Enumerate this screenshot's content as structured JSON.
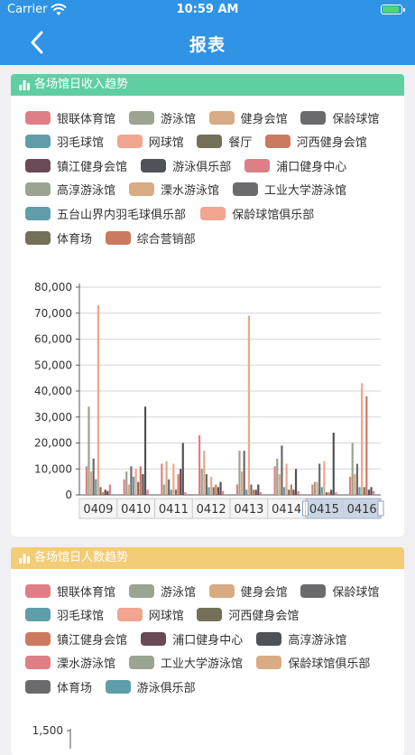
{
  "status": {
    "carrier": "Carrier",
    "time": "10:59 AM",
    "battery_level": 0.9
  },
  "nav": {
    "title": "报表",
    "back_icon": "chevron-left-icon"
  },
  "colors": {
    "navbar": "#2f93e6",
    "card1_header": "#5fcfa2",
    "card2_header": "#f3cc78"
  },
  "card1": {
    "title": "各场馆日收入趋势",
    "icon": "bar-chart-icon",
    "legend": [
      {
        "label": "银联体育馆",
        "color": "#de7f85"
      },
      {
        "label": "游泳馆",
        "color": "#9aa490"
      },
      {
        "label": "健身会馆",
        "color": "#d9ab82"
      },
      {
        "label": "保龄球馆",
        "color": "#6b6b6e"
      },
      {
        "label": "羽毛球馆",
        "color": "#5f9ea8"
      },
      {
        "label": "网球馆",
        "color": "#f1a48e"
      },
      {
        "label": "餐厅",
        "color": "#737058"
      },
      {
        "label": "河西健身会馆",
        "color": "#cc7a5f"
      },
      {
        "label": "镇江健身会馆",
        "color": "#6b4a57"
      },
      {
        "label": "游泳俱乐部",
        "color": "#4f5257"
      },
      {
        "label": "浦口健身中心",
        "color": "#de7f85"
      },
      {
        "label": "高淳游泳馆",
        "color": "#9aa490"
      },
      {
        "label": "溧水游泳馆",
        "color": "#d9ab82"
      },
      {
        "label": "工业大学游泳馆",
        "color": "#6b6b6e"
      },
      {
        "label": "五台山界内羽毛球俱乐部",
        "color": "#5f9ea8"
      },
      {
        "label": "保龄球馆俱乐部",
        "color": "#f1a48e"
      },
      {
        "label": "体育场",
        "color": "#737058"
      },
      {
        "label": "综合营销部",
        "color": "#cc7a5f"
      }
    ]
  },
  "chart_data": [
    {
      "type": "bar",
      "title": "各场馆日收入趋势",
      "categories": [
        "0409",
        "0410",
        "0411",
        "0412",
        "0413",
        "0414",
        "0415",
        "0416"
      ],
      "ylim": [
        0,
        80000
      ],
      "yticks": [
        "0",
        "10,000",
        "20,000",
        "30,000",
        "40,000",
        "50,000",
        "60,000",
        "70,000",
        "80,000"
      ],
      "grid": true,
      "legend_position": "top",
      "zoom_selected": [
        "0415",
        "0416"
      ],
      "series": [
        {
          "name": "银联体育馆",
          "color": "#de7f85",
          "values": [
            11000,
            6000,
            12000,
            23000,
            4000,
            11000,
            4000,
            7000
          ]
        },
        {
          "name": "游泳馆",
          "color": "#9aa490",
          "values": [
            34000,
            9000,
            4000,
            10000,
            17000,
            14000,
            5000,
            20000
          ]
        },
        {
          "name": "健身会馆",
          "color": "#d9ab82",
          "values": [
            9000,
            4000,
            13000,
            17000,
            9000,
            8000,
            5000,
            8000
          ]
        },
        {
          "name": "保龄球馆",
          "color": "#6b6b6e",
          "values": [
            14000,
            11000,
            6000,
            8000,
            17000,
            19000,
            12000,
            12000
          ]
        },
        {
          "name": "羽毛球馆",
          "color": "#5f9ea8",
          "values": [
            6000,
            7000,
            2000,
            3000,
            2000,
            3000,
            3000,
            3000
          ]
        },
        {
          "name": "网球馆",
          "color": "#f1a48e",
          "values": [
            73000,
            10000,
            12000,
            7000,
            69000,
            12000,
            13000,
            43000
          ]
        },
        {
          "name": "餐厅",
          "color": "#737058",
          "values": [
            3000,
            5000,
            2000,
            3000,
            4000,
            2000,
            1000,
            3000
          ]
        },
        {
          "name": "河西健身会馆",
          "color": "#cc7a5f",
          "values": [
            1000,
            11000,
            8000,
            4000,
            2000,
            4000,
            1000,
            38000
          ]
        },
        {
          "name": "镇江健身会馆",
          "color": "#6b4a57",
          "values": [
            2000,
            8000,
            10000,
            3000,
            2000,
            2000,
            2000,
            2000
          ]
        },
        {
          "name": "游泳俱乐部",
          "color": "#4f5257",
          "values": [
            1500,
            34000,
            20000,
            5000,
            4000,
            10000,
            24000,
            3000
          ]
        },
        {
          "name": "浦口健身中心",
          "color": "#de7f85",
          "values": [
            4000,
            2000,
            1000,
            1500,
            1000,
            1500,
            1000,
            1500
          ]
        }
      ]
    },
    {
      "type": "bar",
      "title": "各场馆日人数趋势",
      "yticks": [
        "1,500"
      ]
    }
  ],
  "card2": {
    "title": "各场馆日人数趋势",
    "icon": "bar-chart-icon",
    "legend": [
      {
        "label": "银联体育馆",
        "color": "#de7f85"
      },
      {
        "label": "游泳馆",
        "color": "#9aa490"
      },
      {
        "label": "健身会馆",
        "color": "#d9ab82"
      },
      {
        "label": "保龄球馆",
        "color": "#6b6b6e"
      },
      {
        "label": "羽毛球馆",
        "color": "#5f9ea8"
      },
      {
        "label": "网球馆",
        "color": "#f1a48e"
      },
      {
        "label": "河西健身会馆",
        "color": "#737058"
      },
      {
        "label": "镇江健身会馆",
        "color": "#cc7a5f"
      },
      {
        "label": "浦口健身中心",
        "color": "#6b4a57"
      },
      {
        "label": "高淳游泳馆",
        "color": "#4f5257"
      },
      {
        "label": "溧水游泳馆",
        "color": "#de7f85"
      },
      {
        "label": "工业大学游泳馆",
        "color": "#9aa490"
      },
      {
        "label": "保龄球馆俱乐部",
        "color": "#d9ab82"
      },
      {
        "label": "体育场",
        "color": "#6b6b6e"
      },
      {
        "label": "游泳俱乐部",
        "color": "#5f9ea8"
      }
    ]
  }
}
